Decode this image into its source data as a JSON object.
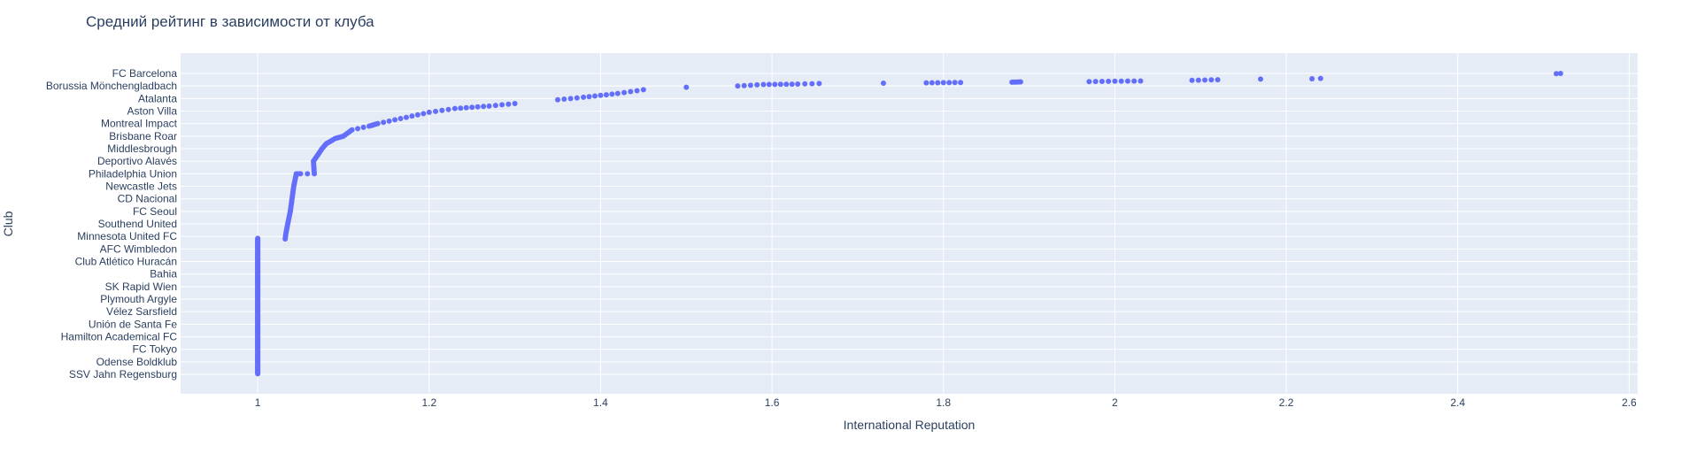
{
  "chart_data": {
    "type": "scatter",
    "title": "Средний рейтинг в зависимости от клуба",
    "xlabel": "International Reputation",
    "ylabel": "Club",
    "xlim": [
      0.91,
      2.61
    ],
    "x_ticks": [
      1,
      1.2,
      1.4,
      1.6,
      1.8,
      2,
      2.2,
      2.4,
      2.6
    ],
    "x_tick_labels": [
      "1",
      "1.2",
      "1.4",
      "1.6",
      "1.8",
      "2",
      "2.2",
      "2.4",
      "2.6"
    ],
    "y_tick_labels": [
      "FC Barcelona",
      "Borussia Mönchengladbach",
      "Atalanta",
      "Aston Villa",
      "Montreal Impact",
      "Brisbane Roar",
      "Middlesbrough",
      "Deportivo Alavés",
      "Philadelphia Union",
      "Newcastle Jets",
      "CD Nacional",
      "FC Seoul",
      "Southend United",
      "Minnesota United FC",
      "AFC Wimbledon",
      "Club Atlético Huracán",
      "Bahia",
      "SK Rapid Wien",
      "Plymouth Argyle",
      "Vélez Sarsfield",
      "Unión de Santa Fe",
      "Hamilton Academical FC",
      "FC Tokyo",
      "Odense Boldklub",
      "SSV Jahn Regensburg"
    ],
    "grid": true,
    "legend": "none",
    "marker_color": "#636efa",
    "plot_bg": "#e5ecf6",
    "curve_points": [
      [
        2.52,
        0.0
      ],
      [
        2.24,
        0.4
      ],
      [
        2.17,
        0.45
      ],
      [
        2.12,
        0.5
      ],
      [
        2.09,
        0.55
      ],
      [
        2.03,
        0.6
      ],
      [
        2.0,
        0.62
      ],
      [
        1.97,
        0.65
      ],
      [
        1.89,
        0.67
      ],
      [
        1.88,
        0.7
      ],
      [
        1.82,
        0.72
      ],
      [
        1.78,
        0.75
      ],
      [
        1.73,
        0.78
      ],
      [
        1.655,
        0.8
      ],
      [
        1.63,
        0.85
      ],
      [
        1.59,
        0.88
      ],
      [
        1.56,
        1.0
      ],
      [
        1.5,
        1.1
      ],
      [
        1.45,
        1.3
      ],
      [
        1.42,
        1.6
      ],
      [
        1.38,
        1.9
      ],
      [
        1.35,
        2.1
      ],
      [
        1.3,
        2.4
      ],
      [
        1.27,
        2.6
      ],
      [
        1.23,
        2.8
      ],
      [
        1.2,
        3.1
      ],
      [
        1.18,
        3.4
      ],
      [
        1.16,
        3.7
      ],
      [
        1.14,
        4.0
      ],
      [
        1.13,
        4.2
      ],
      [
        1.11,
        4.5
      ],
      [
        1.1,
        5.0
      ],
      [
        1.09,
        5.2
      ],
      [
        1.08,
        5.6
      ],
      [
        1.075,
        6.0
      ],
      [
        1.07,
        6.5
      ],
      [
        1.065,
        7.0
      ],
      [
        1.066,
        8.0
      ],
      [
        1.05,
        8.0
      ],
      [
        1.045,
        8.0
      ],
      [
        1.042,
        9.0
      ],
      [
        1.04,
        10.0
      ],
      [
        1.038,
        11.0
      ],
      [
        1.035,
        12.0
      ],
      [
        1.033,
        12.7
      ],
      [
        1.032,
        13.2
      ]
    ],
    "vertical_cluster": {
      "x": 1.0,
      "y_start": 13.15,
      "y_end": 24.0
    }
  }
}
